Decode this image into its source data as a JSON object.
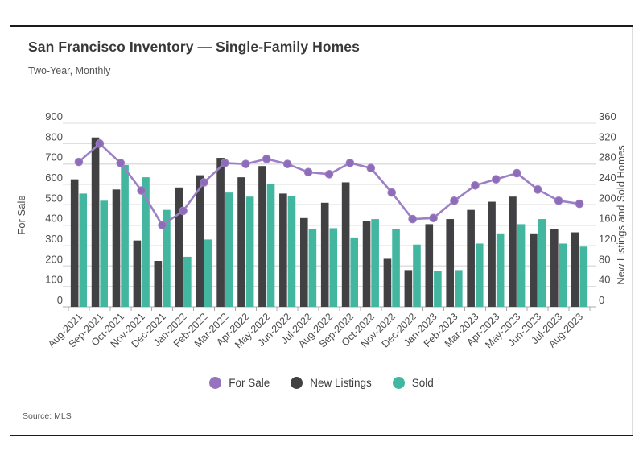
{
  "header": {
    "title": "San Francisco Inventory — Single-Family Homes",
    "subtitle": "Two-Year, Monthly"
  },
  "source": "Source: MLS",
  "legend": [
    {
      "label": "For Sale",
      "color": "#9673bd"
    },
    {
      "label": "New Listings",
      "color": "#414144"
    },
    {
      "label": "Sold",
      "color": "#43b6a0"
    }
  ],
  "colors": {
    "for_sale_line": "#9c80c6",
    "for_sale_dot": "#8e6cb8",
    "new_listings_bar": "#414144",
    "sold_bar": "#43b6a0",
    "gridline": "#dedede",
    "baseline": "#ababab",
    "text": "#4c4c4c"
  },
  "chart_data": {
    "type": "bar",
    "subtype": "grouped bars with overlaid line (dual axis)",
    "title": "San Francisco Inventory — Single-Family Homes",
    "subtitle": "Two-Year, Monthly",
    "grid": true,
    "legend_position": "bottom",
    "categories": [
      "Aug-2021",
      "Sep-2021",
      "Oct-2021",
      "Nov-2021",
      "Dec-2021",
      "Jan-2022",
      "Feb-2022",
      "Mar-2022",
      "Apr-2022",
      "May-2022",
      "Jun-2022",
      "Jul-2022",
      "Aug-2022",
      "Sep-2022",
      "Oct-2022",
      "Nov-2022",
      "Dec-2022",
      "Jan-2023",
      "Feb-2023",
      "Mar-2023",
      "Apr-2023",
      "May-2023",
      "Jun-2023",
      "Jul-2023",
      "Aug-2023"
    ],
    "series": [
      {
        "name": "For Sale",
        "type": "line",
        "axis": "left",
        "values": [
          710,
          800,
          705,
          570,
          400,
          470,
          610,
          705,
          700,
          725,
          700,
          660,
          650,
          705,
          680,
          560,
          430,
          435,
          520,
          595,
          625,
          655,
          575,
          520,
          505
        ]
      },
      {
        "name": "New Listings",
        "type": "bar",
        "axis": "right",
        "values": [
          250,
          332,
          230,
          130,
          90,
          234,
          258,
          292,
          254,
          276,
          222,
          174,
          204,
          244,
          168,
          94,
          72,
          162,
          172,
          190,
          206,
          216,
          144,
          152,
          146
        ]
      },
      {
        "name": "Sold",
        "type": "bar",
        "axis": "right",
        "values": [
          222,
          208,
          278,
          254,
          190,
          98,
          132,
          224,
          216,
          240,
          218,
          152,
          154,
          136,
          172,
          152,
          122,
          70,
          72,
          124,
          144,
          162,
          172,
          124,
          118
        ]
      }
    ],
    "left_axis": {
      "label": "For Sale",
      "min": 0,
      "max": 900,
      "step": 100
    },
    "right_axis": {
      "label": "New Listings and Sold Homes",
      "min": 0,
      "max": 360,
      "step": 40
    }
  }
}
